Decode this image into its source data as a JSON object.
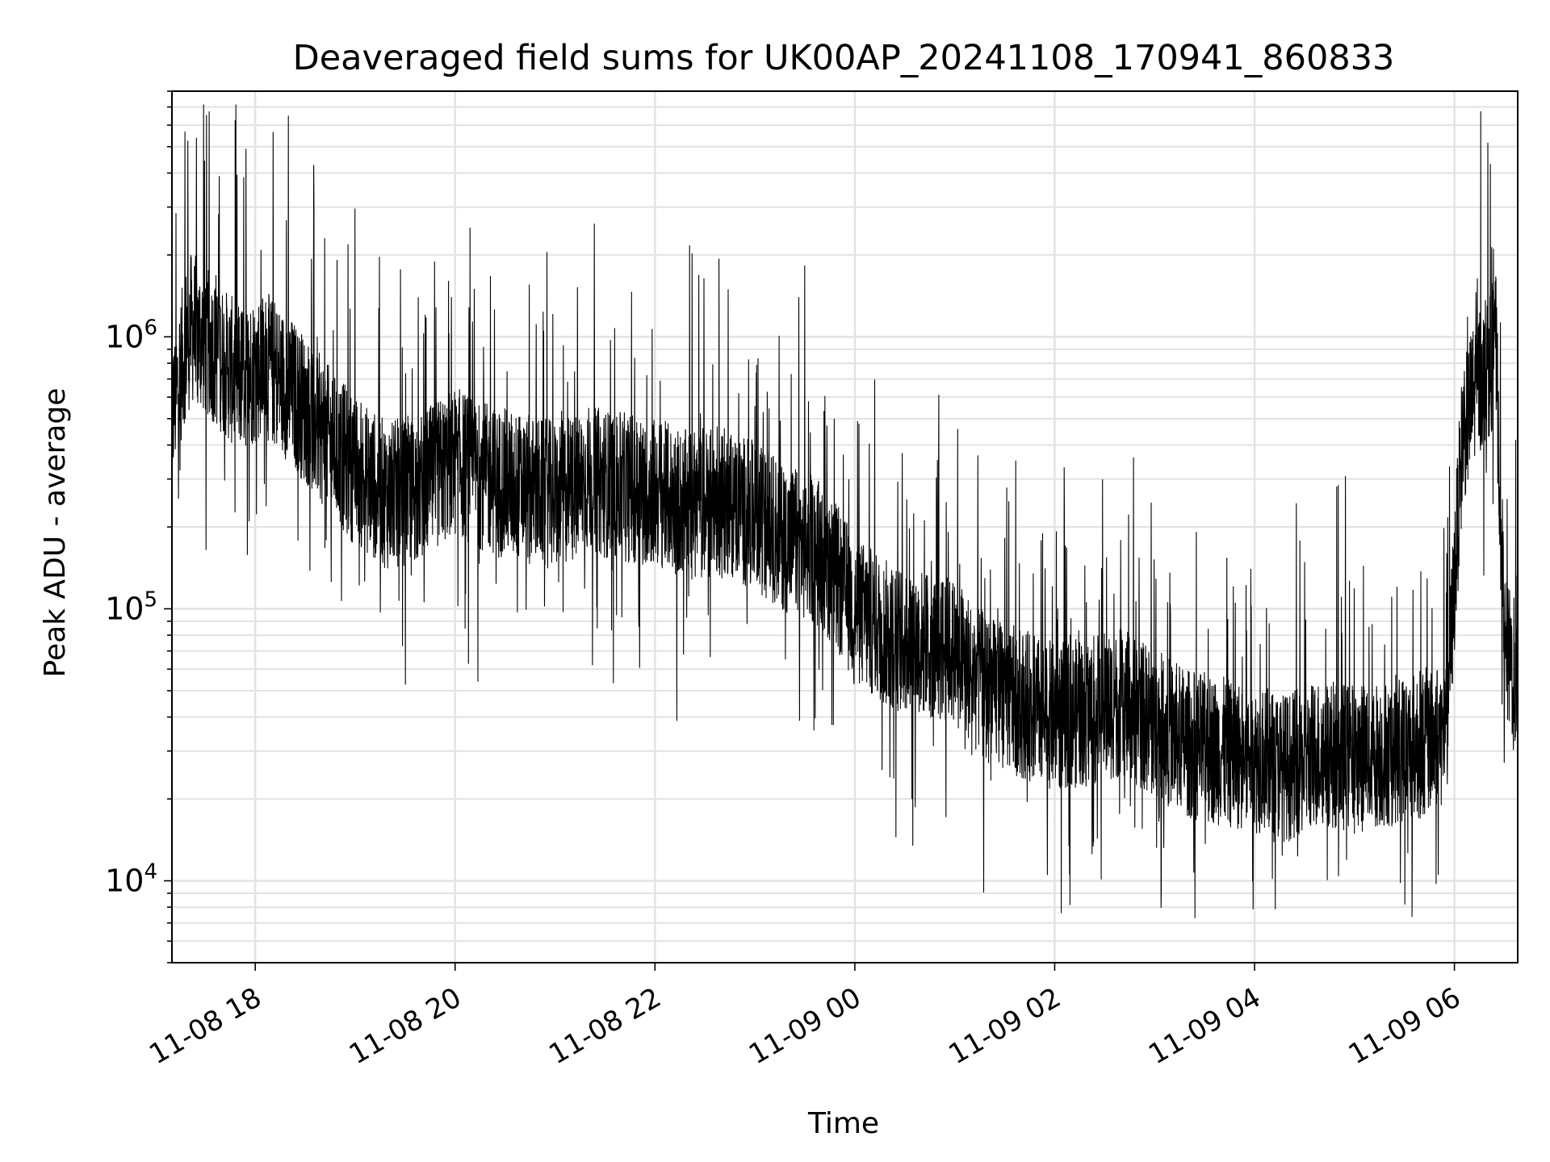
{
  "chart_data": {
    "type": "line",
    "title": "Deaveraged field sums for UK00AP_20241108_170941_860833",
    "xlabel": "Time",
    "ylabel": "Peak ADU - average",
    "x_scale": "time",
    "y_scale": "log",
    "xlim": [
      "2024-11-08T17:10:00",
      "2024-11-09T06:38:00"
    ],
    "ylim": [
      5000,
      8000000
    ],
    "x_ticks": [
      "2024-11-08T18:00",
      "2024-11-08T20:00",
      "2024-11-08T22:00",
      "2024-11-09T00:00",
      "2024-11-09T02:00",
      "2024-11-09T04:00",
      "2024-11-09T06:00"
    ],
    "x_tick_labels": [
      "11-08 18",
      "11-08 20",
      "11-08 22",
      "11-09 00",
      "11-09 02",
      "11-09 04",
      "11-09 06"
    ],
    "y_ticks": [
      10000,
      100000,
      1000000
    ],
    "y_tick_labels": [
      {
        "base": "10",
        "exp": "4"
      },
      {
        "base": "10",
        "exp": "5"
      },
      {
        "base": "10",
        "exp": "6"
      }
    ],
    "grid": true,
    "line_color": "#000000",
    "series": [
      {
        "x": [
          "2024-11-08T17:10",
          "2024-11-08T17:20",
          "2024-11-08T17:35",
          "2024-11-08T17:50",
          "2024-11-08T18:05",
          "2024-11-08T18:20",
          "2024-11-08T18:40",
          "2024-11-08T19:00",
          "2024-11-08T19:20",
          "2024-11-08T19:40",
          "2024-11-08T20:00",
          "2024-11-08T20:20",
          "2024-11-08T20:40",
          "2024-11-08T21:00",
          "2024-11-08T21:20",
          "2024-11-08T21:40",
          "2024-11-08T22:00",
          "2024-11-08T22:20",
          "2024-11-08T22:40",
          "2024-11-08T23:00",
          "2024-11-08T23:20",
          "2024-11-08T23:40",
          "2024-11-09T00:00",
          "2024-11-09T00:20",
          "2024-11-09T00:40",
          "2024-11-09T01:00",
          "2024-11-09T01:20",
          "2024-11-09T01:40",
          "2024-11-09T02:00",
          "2024-11-09T02:20",
          "2024-11-09T02:40",
          "2024-11-09T03:00",
          "2024-11-09T03:20",
          "2024-11-09T03:40",
          "2024-11-09T04:00",
          "2024-11-09T04:20",
          "2024-11-09T04:40",
          "2024-11-09T05:00",
          "2024-11-09T05:20",
          "2024-11-09T05:40",
          "2024-11-09T05:55",
          "2024-11-09T06:05",
          "2024-11-09T06:15",
          "2024-11-09T06:25",
          "2024-11-09T06:30",
          "2024-11-09T06:38"
        ],
        "y": [
          500000,
          1100000,
          900000,
          700000,
          800000,
          650000,
          450000,
          320000,
          260000,
          280000,
          350000,
          300000,
          280000,
          260000,
          300000,
          280000,
          270000,
          240000,
          250000,
          220000,
          180000,
          160000,
          100000,
          80000,
          75000,
          70000,
          50000,
          45000,
          40000,
          42000,
          45000,
          38000,
          32000,
          30000,
          28000,
          26000,
          30000,
          28000,
          30000,
          32000,
          35000,
          450000,
          700000,
          900000,
          70000,
          55000
        ]
      }
    ]
  }
}
